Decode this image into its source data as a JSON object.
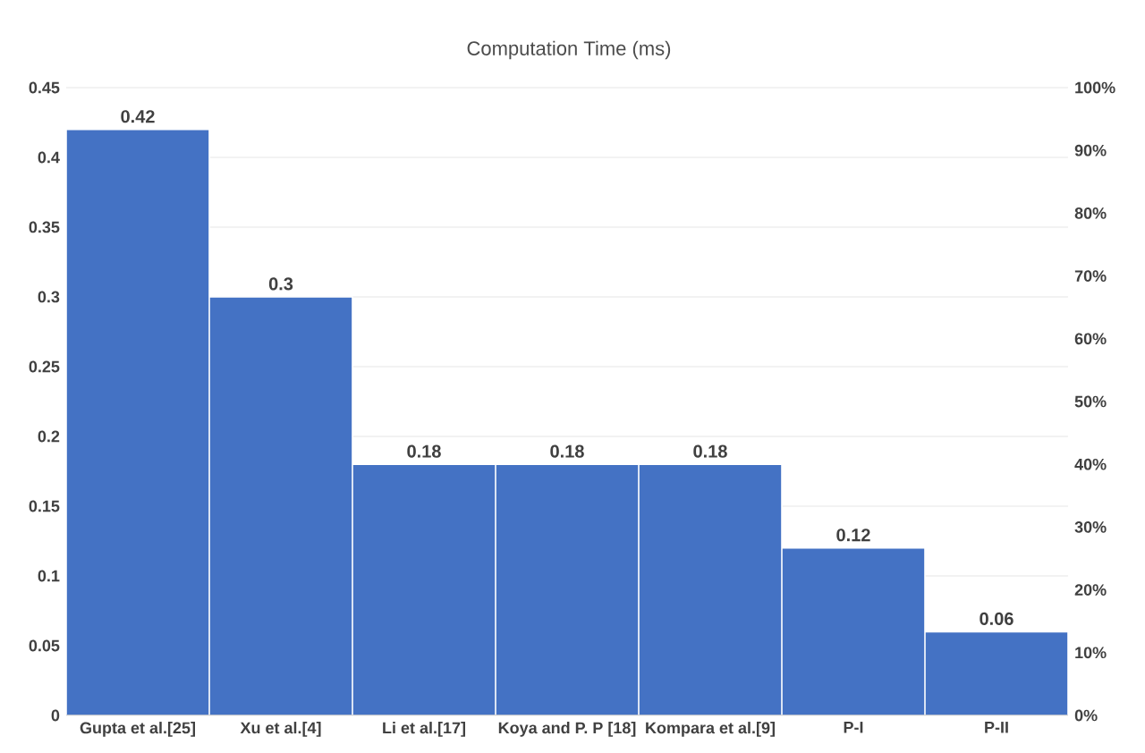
{
  "chart_data": {
    "type": "bar",
    "title": "Computation Time (ms)",
    "categories": [
      "Gupta et al.[25]",
      "Xu et al.[4]",
      "Li et al.[17]",
      "Koya and P. P [18]",
      "Kompara et al.[9]",
      "P-I",
      "P-II"
    ],
    "values": [
      0.42,
      0.3,
      0.18,
      0.18,
      0.18,
      0.12,
      0.06
    ],
    "color": "#4472c4",
    "ylim": [
      0,
      0.45
    ],
    "yticks": [
      0,
      0.05,
      0.1,
      0.15,
      0.2,
      0.25,
      0.3,
      0.35,
      0.4,
      0.45
    ],
    "y2lim": [
      0,
      100
    ],
    "y2ticks": [
      {
        "value": 0,
        "label": "0%"
      },
      {
        "value": 10,
        "label": "10%"
      },
      {
        "value": 20,
        "label": "20%"
      },
      {
        "value": 30,
        "label": "30%"
      },
      {
        "value": 40,
        "label": "40%"
      },
      {
        "value": 50,
        "label": "50%"
      },
      {
        "value": 60,
        "label": "60%"
      },
      {
        "value": 70,
        "label": "70%"
      },
      {
        "value": 80,
        "label": "80%"
      },
      {
        "value": 90,
        "label": "90%"
      },
      {
        "value": 100,
        "label": "100%"
      }
    ],
    "grid": "y",
    "data_labels": true
  }
}
